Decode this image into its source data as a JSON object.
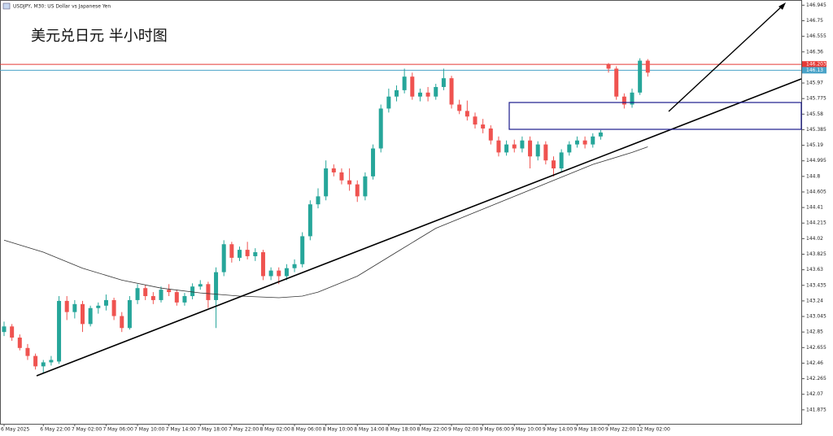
{
  "chart_data": {
    "type": "candlestick",
    "symbol_label": "USDJPY, M30: US Dollar vs Japanese Yen",
    "title": "美元兑日元 半小时图",
    "up_color": "#26a69a",
    "down_color": "#ef5350",
    "ylim": [
      141.7,
      147.01
    ],
    "yticks": [
      141.875,
      142.07,
      142.265,
      142.46,
      142.655,
      142.85,
      143.045,
      143.24,
      143.435,
      143.63,
      143.825,
      144.02,
      144.215,
      144.41,
      144.605,
      144.8,
      144.995,
      145.19,
      145.385,
      145.58,
      145.775,
      145.97,
      146.165,
      146.36,
      146.555,
      146.75,
      146.945
    ],
    "price_lines": [
      {
        "value": 146.203,
        "color": "#e53935"
      },
      {
        "value": 146.13,
        "color": "#4aa3c8"
      }
    ],
    "categories": [
      "6 May 2025",
      null,
      null,
      null,
      null,
      "6 May 22:00",
      null,
      null,
      null,
      "7 May 02:00",
      null,
      null,
      null,
      "7 May 06:00",
      null,
      null,
      null,
      "7 May 10:00",
      null,
      null,
      null,
      "7 May 14:00",
      null,
      null,
      null,
      "7 May 18:00",
      null,
      null,
      null,
      "7 May 22:00",
      null,
      null,
      null,
      "8 May 02:00",
      null,
      null,
      null,
      "8 May 06:00",
      null,
      null,
      null,
      "8 May 10:00",
      null,
      null,
      null,
      "8 May 14:00",
      null,
      null,
      null,
      "8 May 18:00",
      null,
      null,
      null,
      "8 May 22:00",
      null,
      null,
      null,
      "9 May 02:00",
      null,
      null,
      null,
      "9 May 06:00",
      null,
      null,
      null,
      "9 May 10:00",
      null,
      null,
      null,
      "9 May 14:00",
      null,
      null,
      null,
      "9 May 18:00",
      null,
      null,
      null,
      "9 May 22:00",
      null,
      null,
      null,
      "12 May 02:00",
      null
    ],
    "candles": [
      [
        142.85,
        142.98,
        142.8,
        142.92
      ],
      [
        142.92,
        142.95,
        142.74,
        142.78
      ],
      [
        142.78,
        142.82,
        142.62,
        142.65
      ],
      [
        142.65,
        142.7,
        142.5,
        142.55
      ],
      [
        142.55,
        142.58,
        142.38,
        142.42
      ],
      [
        142.42,
        142.5,
        142.33,
        142.47
      ],
      [
        142.47,
        142.55,
        142.43,
        142.5
      ],
      [
        142.48,
        143.3,
        142.45,
        143.24
      ],
      [
        143.24,
        143.3,
        143.0,
        143.1
      ],
      [
        143.1,
        143.25,
        143.02,
        143.2
      ],
      [
        143.2,
        143.24,
        142.85,
        142.95
      ],
      [
        142.95,
        143.18,
        142.92,
        143.15
      ],
      [
        143.15,
        143.22,
        143.08,
        143.18
      ],
      [
        143.18,
        143.32,
        143.12,
        143.25
      ],
      [
        143.25,
        143.28,
        143.0,
        143.05
      ],
      [
        143.05,
        143.1,
        142.85,
        142.9
      ],
      [
        142.9,
        143.3,
        142.88,
        143.25
      ],
      [
        143.25,
        143.45,
        143.2,
        143.4
      ],
      [
        143.4,
        143.44,
        143.25,
        143.3
      ],
      [
        143.3,
        143.35,
        143.2,
        143.25
      ],
      [
        143.25,
        143.42,
        143.22,
        143.38
      ],
      [
        143.38,
        143.45,
        143.3,
        143.35
      ],
      [
        143.35,
        143.38,
        143.18,
        143.22
      ],
      [
        143.22,
        143.34,
        143.18,
        143.3
      ],
      [
        143.3,
        143.46,
        143.26,
        143.42
      ],
      [
        143.42,
        143.5,
        143.38,
        143.45
      ],
      [
        143.45,
        143.48,
        143.15,
        143.25
      ],
      [
        143.25,
        143.66,
        142.9,
        143.6
      ],
      [
        143.6,
        144.0,
        143.55,
        143.95
      ],
      [
        143.95,
        143.98,
        143.72,
        143.78
      ],
      [
        143.78,
        143.92,
        143.74,
        143.88
      ],
      [
        143.88,
        143.98,
        143.76,
        143.8
      ],
      [
        143.8,
        143.9,
        143.74,
        143.85
      ],
      [
        143.85,
        143.88,
        143.5,
        143.55
      ],
      [
        143.55,
        143.66,
        143.5,
        143.62
      ],
      [
        143.62,
        143.66,
        143.45,
        143.55
      ],
      [
        143.55,
        143.7,
        143.5,
        143.65
      ],
      [
        143.65,
        143.76,
        143.6,
        143.7
      ],
      [
        143.7,
        144.1,
        143.66,
        144.05
      ],
      [
        144.05,
        144.5,
        144.0,
        144.45
      ],
      [
        144.45,
        144.65,
        144.4,
        144.55
      ],
      [
        144.55,
        145.0,
        144.5,
        144.9
      ],
      [
        144.9,
        144.95,
        144.8,
        144.85
      ],
      [
        144.85,
        144.9,
        144.7,
        144.75
      ],
      [
        144.75,
        144.9,
        144.62,
        144.7
      ],
      [
        144.7,
        144.75,
        144.48,
        144.55
      ],
      [
        144.55,
        144.85,
        144.5,
        144.8
      ],
      [
        144.8,
        145.2,
        144.76,
        145.15
      ],
      [
        145.15,
        145.7,
        145.1,
        145.65
      ],
      [
        145.65,
        145.9,
        145.6,
        145.8
      ],
      [
        145.8,
        145.94,
        145.74,
        145.88
      ],
      [
        145.88,
        146.15,
        145.84,
        146.05
      ],
      [
        146.05,
        146.1,
        145.76,
        145.8
      ],
      [
        145.8,
        145.9,
        145.74,
        145.85
      ],
      [
        145.85,
        145.92,
        145.74,
        145.8
      ],
      [
        145.8,
        145.96,
        145.76,
        145.92
      ],
      [
        145.92,
        146.15,
        145.88,
        146.03
      ],
      [
        146.03,
        146.06,
        145.65,
        145.7
      ],
      [
        145.7,
        145.76,
        145.58,
        145.62
      ],
      [
        145.62,
        145.75,
        145.5,
        145.55
      ],
      [
        145.55,
        145.6,
        145.4,
        145.45
      ],
      [
        145.45,
        145.52,
        145.34,
        145.4
      ],
      [
        145.4,
        145.44,
        145.2,
        145.25
      ],
      [
        145.25,
        145.3,
        145.05,
        145.1
      ],
      [
        145.1,
        145.25,
        145.06,
        145.2
      ],
      [
        145.2,
        145.26,
        145.1,
        145.15
      ],
      [
        145.15,
        145.3,
        145.1,
        145.25
      ],
      [
        145.25,
        145.3,
        144.9,
        145.05
      ],
      [
        145.05,
        145.24,
        145.0,
        145.2
      ],
      [
        145.2,
        145.24,
        144.95,
        145.0
      ],
      [
        145.0,
        145.05,
        144.8,
        144.9
      ],
      [
        144.9,
        145.14,
        144.86,
        145.1
      ],
      [
        145.1,
        145.24,
        145.06,
        145.2
      ],
      [
        145.2,
        145.3,
        145.16,
        145.25
      ],
      [
        145.25,
        145.3,
        145.15,
        145.2
      ],
      [
        145.2,
        145.34,
        145.16,
        145.3
      ],
      [
        145.3,
        145.38,
        145.26,
        145.35
      ],
      [
        146.2,
        146.22,
        146.1,
        146.15
      ],
      [
        146.15,
        146.18,
        145.76,
        145.8
      ],
      [
        145.8,
        145.84,
        145.65,
        145.7
      ],
      [
        145.7,
        145.9,
        145.66,
        145.85
      ],
      [
        145.85,
        146.28,
        145.82,
        146.25
      ],
      [
        146.25,
        146.27,
        146.05,
        146.1
      ]
    ],
    "ma": {
      "x": [
        0,
        5,
        10,
        15,
        20,
        25,
        30,
        35,
        38,
        40,
        45,
        50,
        55,
        60,
        65,
        70,
        75,
        80,
        82
      ],
      "values": [
        144.0,
        143.85,
        143.65,
        143.5,
        143.4,
        143.34,
        143.3,
        143.28,
        143.3,
        143.35,
        143.55,
        143.85,
        144.15,
        144.35,
        144.55,
        144.75,
        144.95,
        145.1,
        145.17
      ],
      "color": "#333333"
    }
  }
}
